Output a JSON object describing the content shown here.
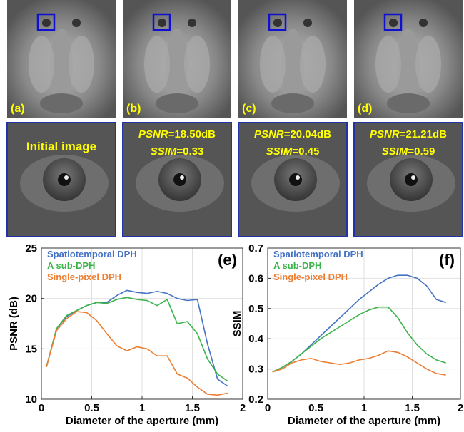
{
  "panels": [
    {
      "label": "(a)"
    },
    {
      "label": "(b)"
    },
    {
      "label": "(c)"
    },
    {
      "label": "(d)"
    }
  ],
  "zooms": [
    {
      "text": "Initial image"
    },
    {
      "metric1": "PSNR",
      "value1": "=18.50dB",
      "metric2": "SSIM",
      "value2": "=0.33"
    },
    {
      "metric1": "PSNR",
      "value1": "=20.04dB",
      "metric2": "SSIM",
      "value2": "=0.45"
    },
    {
      "metric1": "PSNR",
      "value1": "=21.21dB",
      "metric2": "SSIM",
      "value2": "=0.59"
    }
  ],
  "chart_data": [
    {
      "type": "line",
      "annotation": "(e)",
      "xlabel": "Diameter of the aperture (mm)",
      "ylabel": "PSNR (dB)",
      "x": [
        0.05,
        0.15,
        0.25,
        0.35,
        0.45,
        0.55,
        0.65,
        0.75,
        0.85,
        0.95,
        1.05,
        1.15,
        1.25,
        1.35,
        1.45,
        1.55,
        1.65,
        1.75,
        1.85
      ],
      "series": [
        {
          "name": "Spatiotemporal DPH",
          "color": "#4472c4",
          "values": [
            13.2,
            17.0,
            18.2,
            18.8,
            19.3,
            19.6,
            19.6,
            20.3,
            20.8,
            20.6,
            20.5,
            20.7,
            20.5,
            20.0,
            19.8,
            19.9,
            15.5,
            12.0,
            11.3
          ]
        },
        {
          "name": "A sub-DPH",
          "color": "#3cb44b",
          "values": [
            13.2,
            17.0,
            18.3,
            18.8,
            19.3,
            19.6,
            19.5,
            19.9,
            20.1,
            19.9,
            19.8,
            19.3,
            19.9,
            17.5,
            17.7,
            16.5,
            14.0,
            12.5,
            11.8
          ]
        },
        {
          "name": "Single-pixel DPH",
          "color": "#ed7d31",
          "values": [
            13.2,
            16.8,
            18.0,
            18.7,
            18.6,
            17.8,
            16.5,
            15.3,
            14.8,
            15.2,
            15.0,
            14.3,
            14.3,
            12.5,
            12.1,
            11.2,
            10.5,
            10.4,
            10.6
          ]
        }
      ],
      "xlim": [
        0,
        2
      ],
      "xticks": [
        0,
        0.5,
        1,
        1.5,
        2
      ],
      "ylim": [
        10,
        25
      ],
      "yticks": [
        10,
        15,
        20,
        25
      ],
      "grid": true,
      "legend": "upper left"
    },
    {
      "type": "line",
      "annotation": "(f)",
      "xlabel": "Diameter of the aperture (mm)",
      "ylabel": "SSIM",
      "x": [
        0.05,
        0.15,
        0.25,
        0.35,
        0.45,
        0.55,
        0.65,
        0.75,
        0.85,
        0.95,
        1.05,
        1.15,
        1.25,
        1.35,
        1.45,
        1.55,
        1.65,
        1.75,
        1.85
      ],
      "series": [
        {
          "name": "Spatiotemporal DPH",
          "color": "#4472c4",
          "values": [
            0.29,
            0.305,
            0.325,
            0.35,
            0.38,
            0.41,
            0.44,
            0.47,
            0.5,
            0.53,
            0.555,
            0.58,
            0.6,
            0.61,
            0.61,
            0.6,
            0.575,
            0.53,
            0.52
          ]
        },
        {
          "name": "A sub-DPH",
          "color": "#3cb44b",
          "values": [
            0.29,
            0.305,
            0.325,
            0.35,
            0.375,
            0.4,
            0.42,
            0.44,
            0.46,
            0.48,
            0.495,
            0.505,
            0.505,
            0.47,
            0.42,
            0.38,
            0.35,
            0.33,
            0.32
          ]
        },
        {
          "name": "Single-pixel DPH",
          "color": "#ed7d31",
          "values": [
            0.29,
            0.3,
            0.32,
            0.33,
            0.335,
            0.325,
            0.32,
            0.315,
            0.32,
            0.33,
            0.335,
            0.345,
            0.36,
            0.355,
            0.34,
            0.32,
            0.3,
            0.285,
            0.28
          ]
        }
      ],
      "xlim": [
        0,
        2
      ],
      "xticks": [
        0,
        0.5,
        1,
        1.5,
        2
      ],
      "ylim": [
        0.2,
        0.7
      ],
      "yticks": [
        0.2,
        0.3,
        0.4,
        0.5,
        0.6,
        0.7
      ],
      "grid": true,
      "legend": "upper left"
    }
  ]
}
